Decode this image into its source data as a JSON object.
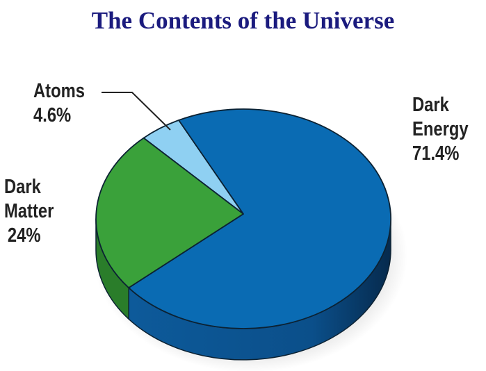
{
  "chart_data": {
    "type": "pie",
    "title": "The Contents of the Universe",
    "slices": [
      {
        "label_line1": "Atoms",
        "label_line2": "",
        "value_text": "4.6%",
        "value": 4.6,
        "color": "#8fd0f2"
      },
      {
        "label_line1": "Dark",
        "label_line2": "Matter",
        "value_text": "24%",
        "value": 24,
        "color": "#3aa13a"
      },
      {
        "label_line1": "Dark",
        "label_line2": "Energy",
        "value_text": "71.4%",
        "value": 71.4,
        "color": "#0a6bb3"
      }
    ],
    "style": "3d-tilted",
    "side_colors": {
      "Dark Matter": "#2a7d2a",
      "Dark Energy": "#0b4f8a"
    }
  }
}
